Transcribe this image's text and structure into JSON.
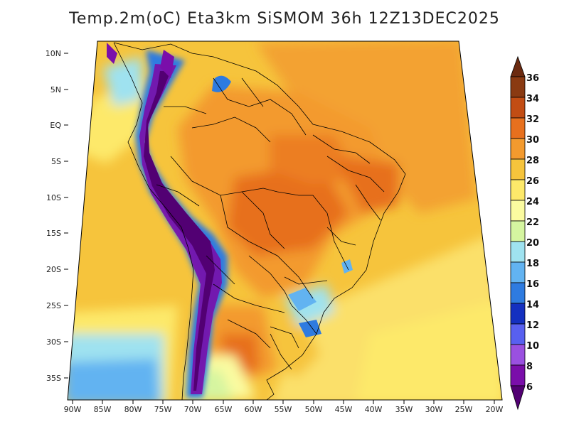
{
  "title": "Temp.2m(oC) Eta3km SiSMOM 36h 12Z13DEC2025",
  "variable": "2 m temperature",
  "units": "oC",
  "lat_labels": [
    "10N",
    "5N",
    "EQ",
    "5S",
    "10S",
    "15S",
    "20S",
    "25S",
    "30S",
    "35S"
  ],
  "lon_labels": [
    "90W",
    "85W",
    "80W",
    "75W",
    "70W",
    "65W",
    "60W",
    "55W",
    "50W",
    "45W",
    "40W",
    "35W",
    "30W",
    "25W",
    "20W"
  ],
  "colorbar": {
    "labels": [
      "36",
      "34",
      "32",
      "30",
      "28",
      "26",
      "24",
      "22",
      "20",
      "18",
      "16",
      "14",
      "12",
      "10",
      "8",
      "6"
    ],
    "colors": [
      "#6b2a10",
      "#8a3a12",
      "#c24d14",
      "#e7701e",
      "#f39a2e",
      "#f6c43c",
      "#fde96a",
      "#fbfba0",
      "#d5f5a0",
      "#9fe2f0",
      "#62b3f1",
      "#2e7be0",
      "#1430c0",
      "#5860f0",
      "#9a50e0",
      "#7a0eaa",
      "#520073"
    ]
  },
  "chart_data": {
    "type": "heatmap",
    "title": "Temp.2m(oC) Eta3km SiSMOM 36h 12Z13DEC2025",
    "lon_range": [
      -90,
      -20
    ],
    "lat_range": [
      -38,
      11
    ],
    "color_levels": [
      6,
      8,
      10,
      12,
      14,
      16,
      18,
      20,
      22,
      24,
      26,
      28,
      30,
      32,
      34,
      36
    ]
  }
}
